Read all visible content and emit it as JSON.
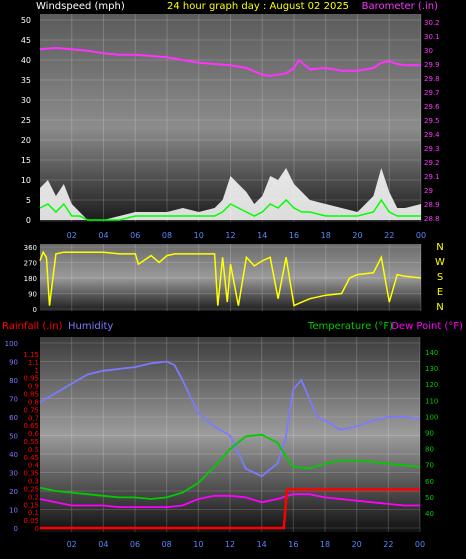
{
  "header": {
    "wind_label": "Windspeed (mph)",
    "title": "24 hour graph day : August 02 2025",
    "baro_label": "Barometer (.in)"
  },
  "colors": {
    "wind": "#ffffff",
    "wind_gust": "#00ff00",
    "barometer": "#ff33ff",
    "direction": "#ffff00",
    "rain": "#ff0000",
    "humidity": "#7b7bff",
    "temperature": "#00cc00",
    "dewpoint": "#ff00ff",
    "tick_x": "#5a86ff"
  },
  "mid": {
    "left_ticks": [
      "360",
      "270",
      "180",
      "90",
      "0"
    ],
    "compass": [
      "N",
      "W",
      "S",
      "E",
      "N"
    ]
  },
  "bottom": {
    "rain_label": "Rainfall (.in)",
    "humidity_label": "Humidity",
    "temp_label": "Temperature (°F)",
    "dew_label": "Dew Point (°F)"
  },
  "x_ticks": [
    "02",
    "04",
    "06",
    "08",
    "10",
    "12",
    "14",
    "16",
    "18",
    "20",
    "22",
    "00"
  ],
  "chart_data": [
    {
      "type": "area",
      "title": "24 hour graph day : August 02 2025",
      "y_left_label": "Windspeed (mph)",
      "y_right_label": "Barometer (.in)",
      "ylim_left": [
        0,
        50
      ],
      "ylim_right": [
        28.8,
        30.3
      ],
      "y_left_ticks": [
        "50",
        "45",
        "40",
        "35",
        "30",
        "25",
        "20",
        "15",
        "10",
        "5",
        "0"
      ],
      "y_right_ticks": [
        "30.2",
        "30.1",
        "30",
        "29.9",
        "29.8",
        "29.7",
        "29.6",
        "29.5",
        "29.4",
        "29.3",
        "29.2",
        "29.1",
        "29",
        "28.9",
        "28.8"
      ],
      "series": [
        {
          "name": "Barometer",
          "x": [
            0,
            1,
            2,
            3,
            4,
            5,
            6,
            7,
            8,
            9,
            10,
            11,
            12,
            13,
            14,
            14.5,
            15,
            15.5,
            16,
            16.3,
            17,
            18,
            19,
            20,
            21,
            21.5,
            22,
            22.5,
            23,
            24
          ],
          "y": [
            30.08,
            30.09,
            30.08,
            30.07,
            30.05,
            30.04,
            30.04,
            30.03,
            30.02,
            30.0,
            29.98,
            29.97,
            29.96,
            29.94,
            29.89,
            29.88,
            29.89,
            29.9,
            29.94,
            30.0,
            29.93,
            29.94,
            29.92,
            29.92,
            29.94,
            29.98,
            29.99,
            29.97,
            29.96,
            29.96
          ]
        },
        {
          "name": "Windspeed",
          "x": [
            0,
            0.5,
            1,
            1.5,
            2,
            2.5,
            3,
            4,
            5,
            6,
            7,
            8,
            9,
            10,
            11,
            11.5,
            12,
            12.5,
            13,
            13.5,
            14,
            14.5,
            15,
            15.5,
            16,
            16.5,
            17,
            18,
            19,
            20,
            21,
            21.5,
            22,
            22.5,
            23,
            24
          ],
          "y": [
            8,
            10,
            6,
            9,
            4,
            2,
            0,
            0,
            1,
            2,
            2,
            2,
            3,
            2,
            3,
            5,
            11,
            9,
            7,
            4,
            6,
            11,
            10,
            13,
            9,
            7,
            5,
            4,
            3,
            2,
            6,
            13,
            7,
            3,
            3,
            4
          ]
        },
        {
          "name": "Wind average",
          "x": [
            0,
            0.5,
            1,
            1.5,
            2,
            2.5,
            3,
            4,
            5,
            6,
            7,
            8,
            9,
            10,
            11,
            11.5,
            12,
            12.5,
            13,
            13.5,
            14,
            14.5,
            15,
            15.5,
            16,
            16.5,
            17,
            18,
            19,
            20,
            21,
            21.5,
            22,
            22.5,
            23,
            24
          ],
          "y": [
            3,
            4,
            2,
            4,
            1,
            1,
            0,
            0,
            0,
            1,
            1,
            1,
            1,
            1,
            1,
            2,
            4,
            3,
            2,
            1,
            2,
            4,
            3,
            5,
            3,
            2,
            2,
            1,
            1,
            1,
            2,
            5,
            2,
            1,
            1,
            1
          ]
        }
      ]
    },
    {
      "type": "line",
      "y_left_label": "Wind direction",
      "ylim_left": [
        0,
        360
      ],
      "y_left_ticks": [
        "360",
        "270",
        "180",
        "90",
        "0"
      ],
      "series": [
        {
          "name": "Wind direction",
          "x": [
            0,
            0.2,
            0.4,
            0.6,
            1,
            1.5,
            2,
            3,
            4,
            5,
            6,
            6.2,
            7,
            7.5,
            8,
            8.5,
            9,
            10,
            11,
            11.2,
            11.5,
            11.8,
            12,
            12.5,
            13,
            13.5,
            14,
            14.5,
            15,
            15.5,
            16,
            16.5,
            17,
            18,
            19,
            19.5,
            20,
            21,
            21.5,
            22,
            22.5,
            23,
            24
          ],
          "y": [
            280,
            330,
            300,
            20,
            320,
            330,
            330,
            330,
            330,
            320,
            320,
            260,
            310,
            270,
            310,
            320,
            320,
            320,
            320,
            20,
            300,
            40,
            260,
            20,
            300,
            250,
            280,
            300,
            60,
            300,
            20,
            40,
            60,
            80,
            90,
            180,
            200,
            210,
            300,
            40,
            200,
            190,
            180
          ]
        }
      ]
    },
    {
      "type": "line",
      "y_left_label": "Rainfall (.in)",
      "y_right_label": "Temperature (°F)",
      "ylim_left": [
        0,
        1.2
      ],
      "ylim_humidity": [
        0,
        100
      ],
      "ylim_right": [
        30,
        145
      ],
      "y_left_ticks": [
        "1.15",
        "1.1",
        "1",
        "0.95",
        "0.9",
        "0.85",
        "0.8",
        "0.75",
        "0.7",
        "0.65",
        "0.6",
        "0.55",
        "0.5",
        "0.45",
        "0.4",
        "0.35",
        "0.3",
        "0.25",
        "0.2",
        "0.15",
        "0.1",
        "0.05",
        "0"
      ],
      "y_humidity_ticks": [
        "100",
        "90",
        "80",
        "70",
        "60",
        "50",
        "40",
        "30",
        "20",
        "10",
        "0"
      ],
      "y_right_ticks": [
        "140",
        "130",
        "120",
        "110",
        "100",
        "90",
        "80",
        "70",
        "60",
        "50",
        "40"
      ],
      "series": [
        {
          "name": "Humidity",
          "x": [
            0,
            1,
            2,
            3,
            4,
            5,
            6,
            7,
            8,
            8.5,
            9,
            10,
            11,
            12,
            13,
            14,
            15,
            15.5,
            16,
            16.5,
            17,
            17.5,
            18,
            19,
            20,
            21,
            22,
            23,
            24
          ],
          "y": [
            68,
            73,
            78,
            83,
            85,
            86,
            87,
            89,
            90,
            88,
            80,
            62,
            55,
            50,
            32,
            28,
            35,
            48,
            75,
            80,
            70,
            60,
            58,
            53,
            55,
            58,
            60,
            60,
            59
          ]
        },
        {
          "name": "Temperature",
          "x": [
            0,
            1,
            2,
            3,
            4,
            5,
            6,
            7,
            8,
            9,
            10,
            11,
            12,
            13,
            14,
            15,
            15.5,
            16,
            17,
            18,
            19,
            20,
            21,
            22,
            23,
            24
          ],
          "y": [
            55,
            53,
            52,
            51,
            50,
            49,
            49,
            48,
            49,
            52,
            58,
            68,
            79,
            87,
            88,
            83,
            75,
            68,
            67,
            70,
            72,
            72,
            71,
            70,
            69,
            68
          ]
        },
        {
          "name": "Dew Point",
          "x": [
            0,
            1,
            2,
            3,
            4,
            5,
            6,
            7,
            8,
            9,
            10,
            11,
            12,
            13,
            14,
            15,
            16,
            17,
            18,
            19,
            20,
            21,
            22,
            23,
            24
          ],
          "y": [
            48,
            46,
            44,
            44,
            44,
            43,
            43,
            43,
            43,
            44,
            48,
            50,
            50,
            49,
            46,
            48,
            51,
            51,
            49,
            48,
            47,
            46,
            45,
            44,
            44
          ]
        },
        {
          "name": "Rainfall",
          "x": [
            0,
            15.4,
            15.6,
            24
          ],
          "y": [
            0,
            0,
            0.25,
            0.25
          ]
        }
      ]
    }
  ]
}
